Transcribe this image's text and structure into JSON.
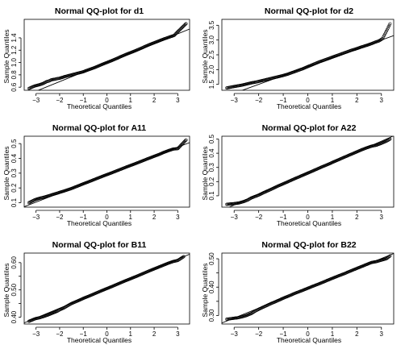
{
  "chart_data": [
    {
      "type": "scatter",
      "title": "Normal QQ-plot for d1",
      "xlabel": "Theoretical Quantiles",
      "ylabel": "Sample Quantiles",
      "xlim": [
        -3.5,
        3.5
      ],
      "ylim": [
        0.55,
        1.7
      ],
      "xticks": [
        -3,
        -2,
        -1,
        0,
        1,
        2,
        3
      ],
      "yticks": [
        0.6,
        0.8,
        1.0,
        1.2,
        1.4
      ],
      "ytick_labels": [
        "0.6",
        "0.8",
        "1.0",
        "1.2",
        "1.4"
      ],
      "reference_line": {
        "intercept": 1.0,
        "slope": 0.155
      },
      "points": [
        [
          -3.3,
          0.58
        ],
        [
          -3.05,
          0.62
        ],
        [
          -2.85,
          0.64
        ],
        [
          -2.7,
          0.66
        ],
        [
          -2.55,
          0.69
        ],
        [
          -2.45,
          0.7
        ],
        [
          -2.35,
          0.72
        ],
        [
          -2.2,
          0.73
        ],
        [
          -2.1,
          0.74
        ],
        [
          -2.0,
          0.745
        ],
        [
          -1.8,
          0.77
        ],
        [
          -1.5,
          0.8
        ],
        [
          -1.2,
          0.83
        ],
        [
          -1.0,
          0.85
        ],
        [
          -0.8,
          0.88
        ],
        [
          -0.5,
          0.92
        ],
        [
          -0.2,
          0.97
        ],
        [
          0,
          1.0
        ],
        [
          0.2,
          1.03
        ],
        [
          0.5,
          1.08
        ],
        [
          0.8,
          1.13
        ],
        [
          1.0,
          1.16
        ],
        [
          1.2,
          1.19
        ],
        [
          1.5,
          1.24
        ],
        [
          1.8,
          1.29
        ],
        [
          2.0,
          1.32
        ],
        [
          2.2,
          1.35
        ],
        [
          2.4,
          1.38
        ],
        [
          2.55,
          1.4
        ],
        [
          2.7,
          1.42
        ],
        [
          2.85,
          1.44
        ],
        [
          3.0,
          1.5
        ],
        [
          3.35,
          1.63
        ]
      ]
    },
    {
      "type": "scatter",
      "title": "Normal QQ-plot for d2",
      "xlabel": "Theoretical Quantiles",
      "ylabel": "Sample Quantiles",
      "xlim": [
        -3.5,
        3.5
      ],
      "ylim": [
        1.3,
        3.7
      ],
      "xticks": [
        -3,
        -2,
        -1,
        0,
        1,
        2,
        3
      ],
      "yticks": [
        1.5,
        2.0,
        2.5,
        3.0,
        3.5
      ],
      "ytick_labels": [
        "1.5",
        "2.0",
        "2.5",
        "3.0",
        "3.5"
      ],
      "reference_line": {
        "intercept": 2.1,
        "slope": 0.3
      },
      "points": [
        [
          -3.3,
          1.38
        ],
        [
          -3.05,
          1.42
        ],
        [
          -2.85,
          1.45
        ],
        [
          -2.7,
          1.47
        ],
        [
          -2.5,
          1.51
        ],
        [
          -2.3,
          1.55
        ],
        [
          -2.1,
          1.58
        ],
        [
          -2.0,
          1.6
        ],
        [
          -1.8,
          1.64
        ],
        [
          -1.5,
          1.7
        ],
        [
          -1.2,
          1.76
        ],
        [
          -1.0,
          1.8
        ],
        [
          -0.8,
          1.85
        ],
        [
          -0.5,
          1.94
        ],
        [
          -0.2,
          2.03
        ],
        [
          0,
          2.1
        ],
        [
          0.2,
          2.17
        ],
        [
          0.5,
          2.27
        ],
        [
          0.8,
          2.36
        ],
        [
          1.0,
          2.42
        ],
        [
          1.2,
          2.48
        ],
        [
          1.5,
          2.57
        ],
        [
          1.8,
          2.66
        ],
        [
          2.0,
          2.71
        ],
        [
          2.2,
          2.77
        ],
        [
          2.4,
          2.82
        ],
        [
          2.6,
          2.88
        ],
        [
          2.75,
          2.93
        ],
        [
          2.9,
          2.97
        ],
        [
          3.05,
          3.05
        ],
        [
          3.35,
          3.55
        ]
      ]
    },
    {
      "type": "scatter",
      "title": "Normal QQ-plot for A11",
      "xlabel": "Theoretical Quantiles",
      "ylabel": "Sample Quantiles",
      "xlim": [
        -3.5,
        3.5
      ],
      "ylim": [
        0.07,
        0.55
      ],
      "xticks": [
        -3,
        -2,
        -1,
        0,
        1,
        2,
        3
      ],
      "yticks": [
        0.1,
        0.2,
        0.3,
        0.4,
        0.5
      ],
      "ytick_labels": [
        "0.1",
        "0.2",
        "0.3",
        "0.4",
        "0.5"
      ],
      "reference_line": {
        "intercept": 0.29,
        "slope": 0.062
      },
      "points": [
        [
          -3.3,
          0.1
        ],
        [
          -3.05,
          0.12
        ],
        [
          -2.85,
          0.13
        ],
        [
          -2.6,
          0.14
        ],
        [
          -2.4,
          0.15
        ],
        [
          -2.2,
          0.16
        ],
        [
          -2.0,
          0.17
        ],
        [
          -1.8,
          0.18
        ],
        [
          -1.5,
          0.196
        ],
        [
          -1.2,
          0.215
        ],
        [
          -1.0,
          0.228
        ],
        [
          -0.8,
          0.24
        ],
        [
          -0.5,
          0.259
        ],
        [
          -0.2,
          0.278
        ],
        [
          0,
          0.29
        ],
        [
          0.2,
          0.302
        ],
        [
          0.5,
          0.321
        ],
        [
          0.8,
          0.34
        ],
        [
          1.0,
          0.352
        ],
        [
          1.2,
          0.364
        ],
        [
          1.5,
          0.383
        ],
        [
          1.8,
          0.402
        ],
        [
          2.0,
          0.414
        ],
        [
          2.2,
          0.426
        ],
        [
          2.4,
          0.44
        ],
        [
          2.6,
          0.452
        ],
        [
          2.8,
          0.463
        ],
        [
          3.0,
          0.466
        ],
        [
          3.35,
          0.525
        ]
      ]
    },
    {
      "type": "scatter",
      "title": "Normal QQ-plot for A22",
      "xlabel": "Theoretical Quantiles",
      "ylabel": "Sample Quantiles",
      "xlim": [
        -3.5,
        3.5
      ],
      "ylim": [
        0.02,
        0.52
      ],
      "xticks": [
        -3,
        -2,
        -1,
        0,
        1,
        2,
        3
      ],
      "yticks": [
        0.1,
        0.2,
        0.3,
        0.4,
        0.5
      ],
      "ytick_labels": [
        "0.1",
        "0.2",
        "0.3",
        "0.4",
        "0.5"
      ],
      "reference_line": {
        "intercept": 0.26,
        "slope": 0.075
      },
      "points": [
        [
          -3.3,
          0.04
        ],
        [
          -3.0,
          0.045
        ],
        [
          -2.8,
          0.05
        ],
        [
          -2.6,
          0.06
        ],
        [
          -2.45,
          0.07
        ],
        [
          -2.3,
          0.085
        ],
        [
          -2.15,
          0.095
        ],
        [
          -2.0,
          0.105
        ],
        [
          -1.8,
          0.122
        ],
        [
          -1.5,
          0.145
        ],
        [
          -1.2,
          0.17
        ],
        [
          -1.0,
          0.185
        ],
        [
          -0.8,
          0.2
        ],
        [
          -0.5,
          0.223
        ],
        [
          -0.2,
          0.245
        ],
        [
          0,
          0.26
        ],
        [
          0.2,
          0.275
        ],
        [
          0.5,
          0.298
        ],
        [
          0.8,
          0.32
        ],
        [
          1.0,
          0.335
        ],
        [
          1.2,
          0.35
        ],
        [
          1.5,
          0.373
        ],
        [
          1.8,
          0.395
        ],
        [
          2.0,
          0.41
        ],
        [
          2.2,
          0.425
        ],
        [
          2.4,
          0.438
        ],
        [
          2.6,
          0.45
        ],
        [
          2.8,
          0.457
        ],
        [
          3.0,
          0.47
        ],
        [
          3.2,
          0.485
        ],
        [
          3.35,
          0.5
        ]
      ]
    },
    {
      "type": "scatter",
      "title": "Normal QQ-plot for B11",
      "xlabel": "Theoretical Quantiles",
      "ylabel": "Sample Quantiles",
      "xlim": [
        -3.5,
        3.5
      ],
      "ylim": [
        0.375,
        0.635
      ],
      "xticks": [
        -3,
        -2,
        -1,
        0,
        1,
        2,
        3
      ],
      "yticks": [
        0.4,
        0.45,
        0.5,
        0.55,
        0.6
      ],
      "ytick_labels": [
        "0.40",
        "",
        "0.50",
        "",
        "0.60"
      ],
      "reference_line": {
        "intercept": 0.505,
        "slope": 0.036
      },
      "points": [
        [
          -3.3,
          0.385
        ],
        [
          -3.05,
          0.394
        ],
        [
          -2.85,
          0.398
        ],
        [
          -2.7,
          0.402
        ],
        [
          -2.5,
          0.408
        ],
        [
          -2.3,
          0.415
        ],
        [
          -2.1,
          0.422
        ],
        [
          -2.0,
          0.427
        ],
        [
          -1.8,
          0.435
        ],
        [
          -1.5,
          0.45
        ],
        [
          -1.2,
          0.461
        ],
        [
          -1.0,
          0.469
        ],
        [
          -0.8,
          0.476
        ],
        [
          -0.5,
          0.487
        ],
        [
          -0.2,
          0.498
        ],
        [
          0,
          0.505
        ],
        [
          0.2,
          0.512
        ],
        [
          0.5,
          0.523
        ],
        [
          0.8,
          0.534
        ],
        [
          1.0,
          0.541
        ],
        [
          1.2,
          0.548
        ],
        [
          1.5,
          0.559
        ],
        [
          1.8,
          0.57
        ],
        [
          2.0,
          0.577
        ],
        [
          2.2,
          0.584
        ],
        [
          2.4,
          0.591
        ],
        [
          2.6,
          0.598
        ],
        [
          2.8,
          0.604
        ],
        [
          3.0,
          0.608
        ],
        [
          3.25,
          0.622
        ]
      ]
    },
    {
      "type": "scatter",
      "title": "Normal QQ-plot for B22",
      "xlabel": "Theoretical Quantiles",
      "ylabel": "Sample Quantiles",
      "xlim": [
        -3.5,
        3.5
      ],
      "ylim": [
        0.27,
        0.52
      ],
      "xticks": [
        -3,
        -2,
        -1,
        0,
        1,
        2,
        3
      ],
      "yticks": [
        0.3,
        0.35,
        0.4,
        0.45,
        0.5
      ],
      "ytick_labels": [
        "0.30",
        "",
        "0.40",
        "",
        "0.50"
      ],
      "reference_line": {
        "intercept": 0.396,
        "slope": 0.035
      },
      "points": [
        [
          -3.3,
          0.287
        ],
        [
          -3.05,
          0.29
        ],
        [
          -2.85,
          0.292
        ],
        [
          -2.7,
          0.295
        ],
        [
          -2.5,
          0.3
        ],
        [
          -2.3,
          0.307
        ],
        [
          -2.15,
          0.315
        ],
        [
          -2.0,
          0.322
        ],
        [
          -1.8,
          0.33
        ],
        [
          -1.5,
          0.342
        ],
        [
          -1.2,
          0.353
        ],
        [
          -1.0,
          0.361
        ],
        [
          -0.8,
          0.368
        ],
        [
          -0.5,
          0.379
        ],
        [
          -0.2,
          0.389
        ],
        [
          0,
          0.396
        ],
        [
          0.2,
          0.403
        ],
        [
          0.5,
          0.413
        ],
        [
          0.8,
          0.424
        ],
        [
          1.0,
          0.431
        ],
        [
          1.2,
          0.438
        ],
        [
          1.5,
          0.448
        ],
        [
          1.8,
          0.459
        ],
        [
          2.0,
          0.466
        ],
        [
          2.2,
          0.473
        ],
        [
          2.4,
          0.48
        ],
        [
          2.6,
          0.487
        ],
        [
          2.8,
          0.49
        ],
        [
          3.0,
          0.495
        ],
        [
          3.2,
          0.5
        ],
        [
          3.35,
          0.51
        ]
      ]
    }
  ]
}
